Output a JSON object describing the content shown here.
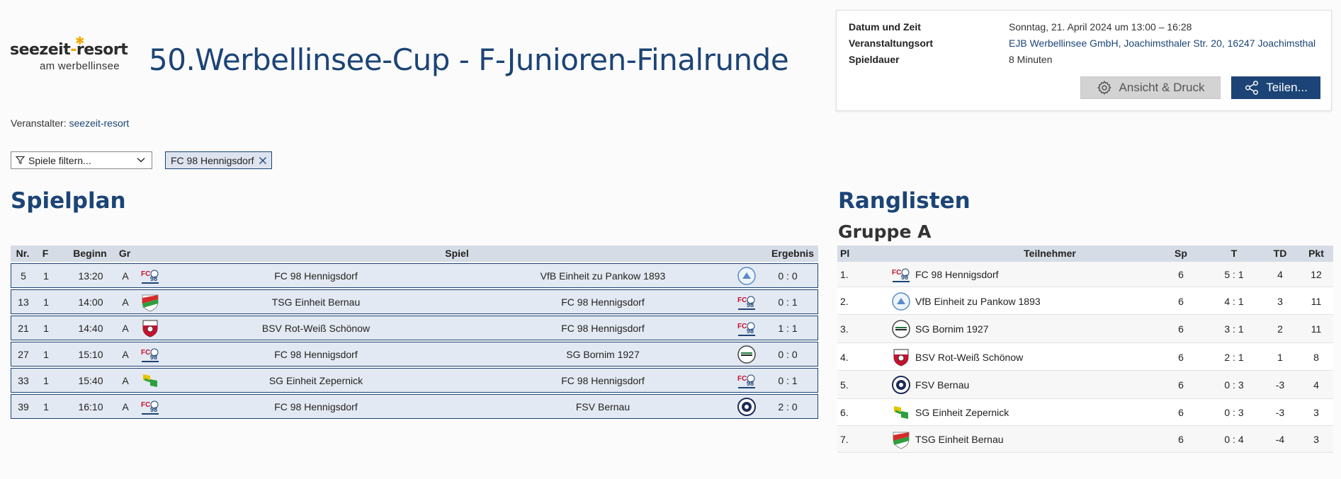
{
  "logo": {
    "brand_left": "seezeit",
    "brand_dash": "-",
    "brand_right": "resort",
    "sub": "am werbellinsee"
  },
  "title": "50.Werbellinsee-Cup - F-Junioren-Finalrunde",
  "organizer": {
    "label": "Veranstalter:",
    "link": "seezeit-resort"
  },
  "info": {
    "date_label": "Datum und Zeit",
    "date_value": "Sonntag, 21. April 2024 um 13:00 – 16:28",
    "venue_label": "Veranstaltungsort",
    "venue_value": "EJB Werbellinsee GmbH, Joachimsthaler Str. 20, 16247 Joachimsthal",
    "duration_label": "Spieldauer",
    "duration_value": "8 Minuten",
    "view_button": "Ansicht & Druck",
    "share_button": "Teilen..."
  },
  "filter": {
    "placeholder": "Spiele filtern...",
    "chip": "FC 98 Hennigsdorf"
  },
  "schedule": {
    "heading": "Spielplan",
    "headers": {
      "nr": "Nr.",
      "f": "F",
      "beginn": "Beginn",
      "gr": "Gr",
      "spiel": "Spiel",
      "ergebnis": "Ergebnis"
    },
    "rows": [
      {
        "nr": "5",
        "f": "1",
        "beginn": "13:20",
        "gr": "A",
        "home": "FC 98 Hennigsdorf",
        "away": "VfB Einheit zu Pankow 1893",
        "result": "0 : 0",
        "home_logo": "fc98",
        "away_logo": "vfb"
      },
      {
        "nr": "13",
        "f": "1",
        "beginn": "14:00",
        "gr": "A",
        "home": "TSG Einheit Bernau",
        "away": "FC 98 Hennigsdorf",
        "result": "0 : 1",
        "home_logo": "tsg",
        "away_logo": "fc98"
      },
      {
        "nr": "21",
        "f": "1",
        "beginn": "14:40",
        "gr": "A",
        "home": "BSV Rot-Weiß Schönow",
        "away": "FC 98 Hennigsdorf",
        "result": "1 : 1",
        "home_logo": "bsv",
        "away_logo": "fc98"
      },
      {
        "nr": "27",
        "f": "1",
        "beginn": "15:10",
        "gr": "A",
        "home": "FC 98 Hennigsdorf",
        "away": "SG Bornim 1927",
        "result": "0 : 0",
        "home_logo": "fc98",
        "away_logo": "bornim"
      },
      {
        "nr": "33",
        "f": "1",
        "beginn": "15:40",
        "gr": "A",
        "home": "SG Einheit Zepernick",
        "away": "FC 98 Hennigsdorf",
        "result": "0 : 1",
        "home_logo": "zep",
        "away_logo": "fc98"
      },
      {
        "nr": "39",
        "f": "1",
        "beginn": "16:10",
        "gr": "A",
        "home": "FC 98 Hennigsdorf",
        "away": "FSV Bernau",
        "result": "2 : 0",
        "home_logo": "fc98",
        "away_logo": "fsv"
      }
    ]
  },
  "ranking": {
    "heading": "Ranglisten",
    "group": "Gruppe A",
    "headers": {
      "pl": "Pl",
      "team": "Teilnehmer",
      "sp": "Sp",
      "t": "T",
      "td": "TD",
      "pkt": "Pkt"
    },
    "rows": [
      {
        "pl": "1.",
        "team": "FC 98 Hennigsdorf",
        "sp": "6",
        "t": "5 : 1",
        "td": "4",
        "pkt": "12",
        "logo": "fc98"
      },
      {
        "pl": "2.",
        "team": "VfB Einheit zu Pankow 1893",
        "sp": "6",
        "t": "4 : 1",
        "td": "3",
        "pkt": "11",
        "logo": "vfb"
      },
      {
        "pl": "3.",
        "team": "SG Bornim 1927",
        "sp": "6",
        "t": "3 : 1",
        "td": "2",
        "pkt": "11",
        "logo": "bornim"
      },
      {
        "pl": "4.",
        "team": "BSV Rot-Weiß Schönow",
        "sp": "6",
        "t": "2 : 1",
        "td": "1",
        "pkt": "8",
        "logo": "bsv"
      },
      {
        "pl": "5.",
        "team": "FSV Bernau",
        "sp": "6",
        "t": "0 : 3",
        "td": "-3",
        "pkt": "4",
        "logo": "fsv"
      },
      {
        "pl": "6.",
        "team": "SG Einheit Zepernick",
        "sp": "6",
        "t": "0 : 3",
        "td": "-3",
        "pkt": "3",
        "logo": "zep"
      },
      {
        "pl": "7.",
        "team": "TSG Einheit Bernau",
        "sp": "6",
        "t": "0 : 4",
        "td": "-4",
        "pkt": "3",
        "logo": "tsg"
      }
    ]
  },
  "colors": {
    "accent": "#1c4476",
    "brand_orange": "#f2a900",
    "row_bg": "#e3e9f2",
    "header_bg": "#d5dce6"
  }
}
